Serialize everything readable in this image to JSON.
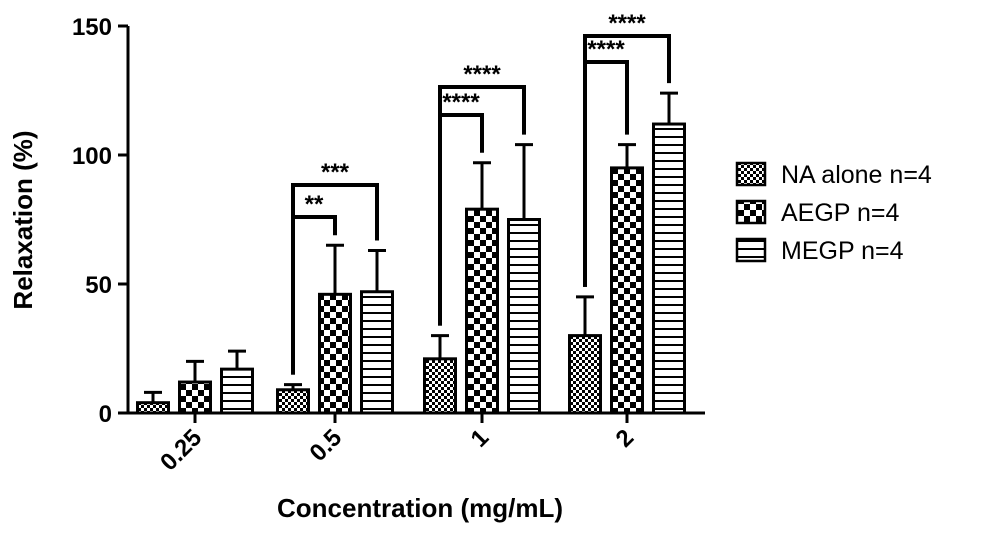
{
  "chart_data": {
    "type": "bar",
    "xlabel": "Concentration (mg/mL)",
    "ylabel": "Relaxation (%)",
    "ylim": [
      0,
      150
    ],
    "yticks": [
      0,
      50,
      100,
      150
    ],
    "categories": [
      "0.25",
      "0.5",
      "1",
      "2"
    ],
    "series": [
      {
        "name": "NA alone n=4",
        "pattern": "checker-small",
        "values": [
          4,
          9,
          21,
          30
        ],
        "errors": [
          4,
          2,
          9,
          15
        ]
      },
      {
        "name": "AEGP n=4",
        "pattern": "checker-large",
        "values": [
          12,
          46,
          79,
          95
        ],
        "errors": [
          8,
          19,
          18,
          9
        ]
      },
      {
        "name": "MEGP n=4",
        "pattern": "horizontal-lines",
        "values": [
          17,
          47,
          75,
          112
        ],
        "errors": [
          7,
          16,
          29,
          12
        ]
      }
    ],
    "annotations": [
      {
        "category": "0.5",
        "from_series": 0,
        "to_series": 1,
        "label": "**"
      },
      {
        "category": "0.5",
        "from_series": 0,
        "to_series": 2,
        "label": "***"
      },
      {
        "category": "1",
        "from_series": 0,
        "to_series": 1,
        "label": "****"
      },
      {
        "category": "1",
        "from_series": 0,
        "to_series": 2,
        "label": "****"
      },
      {
        "category": "2",
        "from_series": 0,
        "to_series": 1,
        "label": "****"
      },
      {
        "category": "2",
        "from_series": 0,
        "to_series": 2,
        "label": "****"
      }
    ],
    "legend_position": "right",
    "grid": false,
    "colors": {
      "bar_fill": "#ffffff",
      "ink": "#000000"
    }
  }
}
